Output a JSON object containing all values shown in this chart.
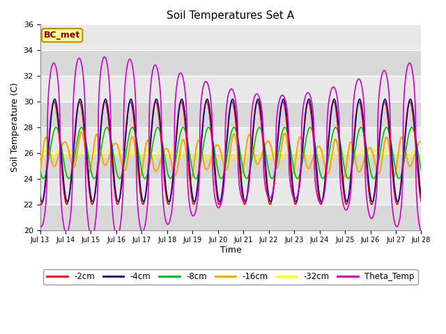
{
  "title": "Soil Temperatures Set A",
  "xlabel": "Time",
  "ylabel": "Soil Temperature (C)",
  "ylim": [
    20,
    36
  ],
  "n_days": 15,
  "xtick_labels": [
    "Jul 13",
    "Jul 14",
    "Jul 15",
    "Jul 16",
    "Jul 17",
    "Jul 18",
    "Jul 19",
    "Jul 20",
    "Jul 21",
    "Jul 22",
    "Jul 23",
    "Jul 24",
    "Jul 25",
    "Jul 26",
    "Jul 27",
    "Jul 28"
  ],
  "annotation_text": "BC_met",
  "annotation_bg": "#FFFF99",
  "annotation_border": "#CC8800",
  "annotation_text_color": "#880000",
  "bg_color": "#E0E0E0",
  "alt_bg_color": "#CCCCCC",
  "line_colors": {
    "-2cm": "#FF0000",
    "-4cm": "#00008B",
    "-8cm": "#00BB00",
    "-16cm": "#FFA500",
    "-32cm": "#FFFF00",
    "Theta_Temp": "#CC00CC"
  },
  "legend_labels": [
    "-2cm",
    "-4cm",
    "-8cm",
    "-16cm",
    "-32cm",
    "Theta_Temp"
  ],
  "figsize": [
    6.4,
    4.8
  ],
  "dpi": 100
}
